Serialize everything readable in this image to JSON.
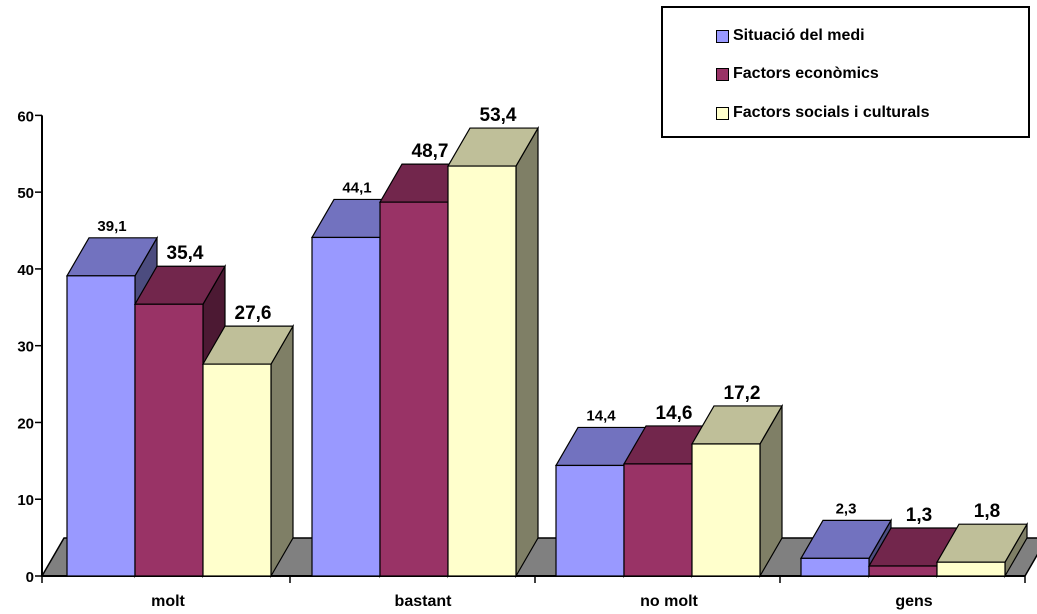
{
  "chart_data": {
    "type": "bar",
    "categories": [
      "molt",
      "bastant",
      "no molt",
      "gens"
    ],
    "series": [
      {
        "name": "Situació del medi",
        "values": [
          39.1,
          44.1,
          14.4,
          2.3
        ],
        "labels": [
          "39,1",
          "44,1",
          "14,4",
          "2,3"
        ]
      },
      {
        "name": "Factors econòmics",
        "values": [
          35.4,
          48.7,
          14.6,
          1.3
        ],
        "labels": [
          "35,4",
          "48,7",
          "14,6",
          "1,3"
        ]
      },
      {
        "name": "Factors socials i culturals",
        "values": [
          27.6,
          53.4,
          17.2,
          1.8
        ],
        "labels": [
          "27,6",
          "53,4",
          "17,2",
          "1,8"
        ]
      }
    ],
    "yticks": [
      "0",
      "10",
      "20",
      "30",
      "40",
      "50",
      "60"
    ],
    "ylim": [
      0,
      60
    ],
    "grid": false,
    "legend_position": "top-right",
    "style": "3d-bar",
    "colors": {
      "front": [
        "#9999ff",
        "#993366",
        "#ffffcc"
      ],
      "top": [
        "#7272bf",
        "#72264c",
        "#bfbf99"
      ],
      "side": [
        "#4c4c7f",
        "#4c1933",
        "#7f7f66"
      ],
      "floor": "#808080"
    }
  }
}
